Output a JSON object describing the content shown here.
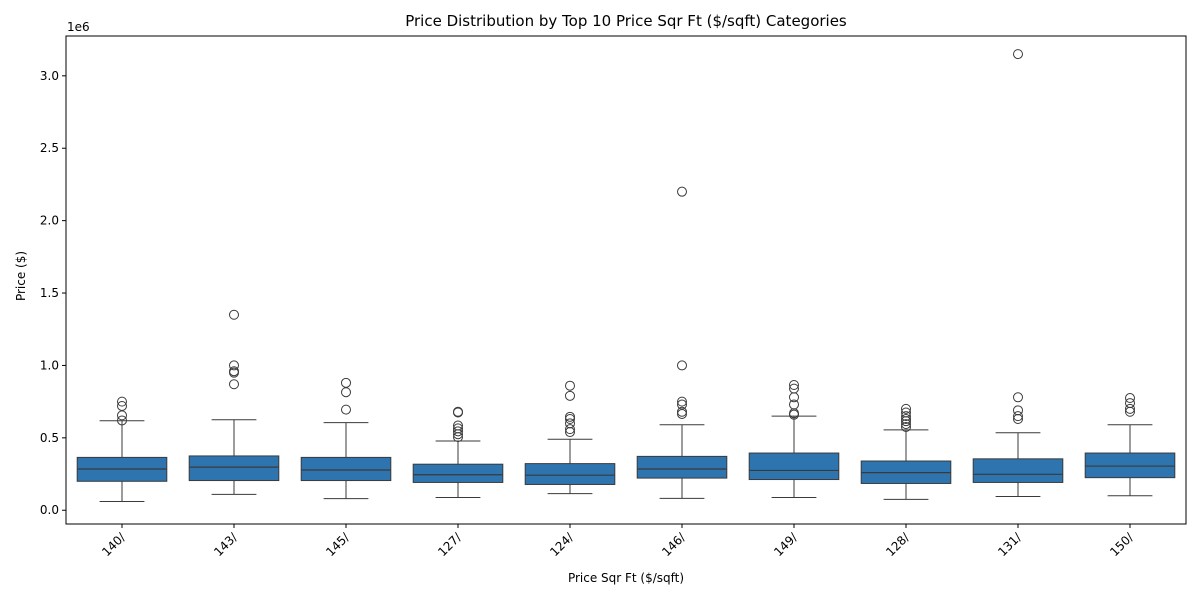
{
  "chart_data": {
    "type": "boxplot",
    "title": "Price Distribution by Top 10 Price Sqr Ft ($/sqft) Categories",
    "xlabel": "Price Sqr Ft ($/sqft)",
    "ylabel": "Price ($)",
    "y_offset_label": "1e6",
    "y_scale": 1000000,
    "ylim": [
      -95000,
      3275000
    ],
    "yticks": [
      0,
      500000,
      1000000,
      1500000,
      2000000,
      2500000,
      3000000
    ],
    "ytick_labels": [
      "0.0",
      "0.5",
      "1.0",
      "1.5",
      "2.0",
      "2.5",
      "3.0"
    ],
    "grid": false,
    "legend": "none",
    "box_color": "#2e75b0",
    "line_color": "#3a3a3a",
    "categories": [
      "140/",
      "143/",
      "145/",
      "127/",
      "124/",
      "146/",
      "149/",
      "128/",
      "131/",
      "150/"
    ],
    "boxes": [
      {
        "whisker_low": 60000,
        "q1": 200000,
        "median": 285000,
        "q3": 365000,
        "whisker_high": 618000,
        "outliers": [
          620000,
          655000,
          720000,
          750000
        ]
      },
      {
        "whisker_low": 110000,
        "q1": 205000,
        "median": 298000,
        "q3": 375000,
        "whisker_high": 625000,
        "outliers": [
          870000,
          950000,
          960000,
          1000000,
          1350000
        ]
      },
      {
        "whisker_low": 80000,
        "q1": 205000,
        "median": 278000,
        "q3": 365000,
        "whisker_high": 605000,
        "outliers": [
          695000,
          815000,
          880000
        ]
      },
      {
        "whisker_low": 88000,
        "q1": 192000,
        "median": 245000,
        "q3": 318000,
        "whisker_high": 478000,
        "outliers": [
          505000,
          525000,
          545000,
          565000,
          585000,
          675000,
          680000
        ]
      },
      {
        "whisker_low": 115000,
        "q1": 178000,
        "median": 242000,
        "q3": 322000,
        "whisker_high": 490000,
        "outliers": [
          540000,
          560000,
          600000,
          630000,
          645000,
          790000,
          860000
        ]
      },
      {
        "whisker_low": 82000,
        "q1": 222000,
        "median": 285000,
        "q3": 372000,
        "whisker_high": 590000,
        "outliers": [
          665000,
          680000,
          730000,
          750000,
          1000000,
          2200000
        ]
      },
      {
        "whisker_low": 88000,
        "q1": 212000,
        "median": 275000,
        "q3": 395000,
        "whisker_high": 650000,
        "outliers": [
          660000,
          670000,
          730000,
          780000,
          840000,
          865000
        ]
      },
      {
        "whisker_low": 75000,
        "q1": 185000,
        "median": 260000,
        "q3": 340000,
        "whisker_high": 555000,
        "outliers": [
          575000,
          595000,
          615000,
          630000,
          650000,
          675000,
          700000
        ]
      },
      {
        "whisker_low": 95000,
        "q1": 192000,
        "median": 248000,
        "q3": 355000,
        "whisker_high": 535000,
        "outliers": [
          630000,
          650000,
          690000,
          780000,
          3150000
        ]
      },
      {
        "whisker_low": 100000,
        "q1": 225000,
        "median": 305000,
        "q3": 395000,
        "whisker_high": 590000,
        "outliers": [
          680000,
          700000,
          740000,
          775000
        ]
      }
    ]
  }
}
